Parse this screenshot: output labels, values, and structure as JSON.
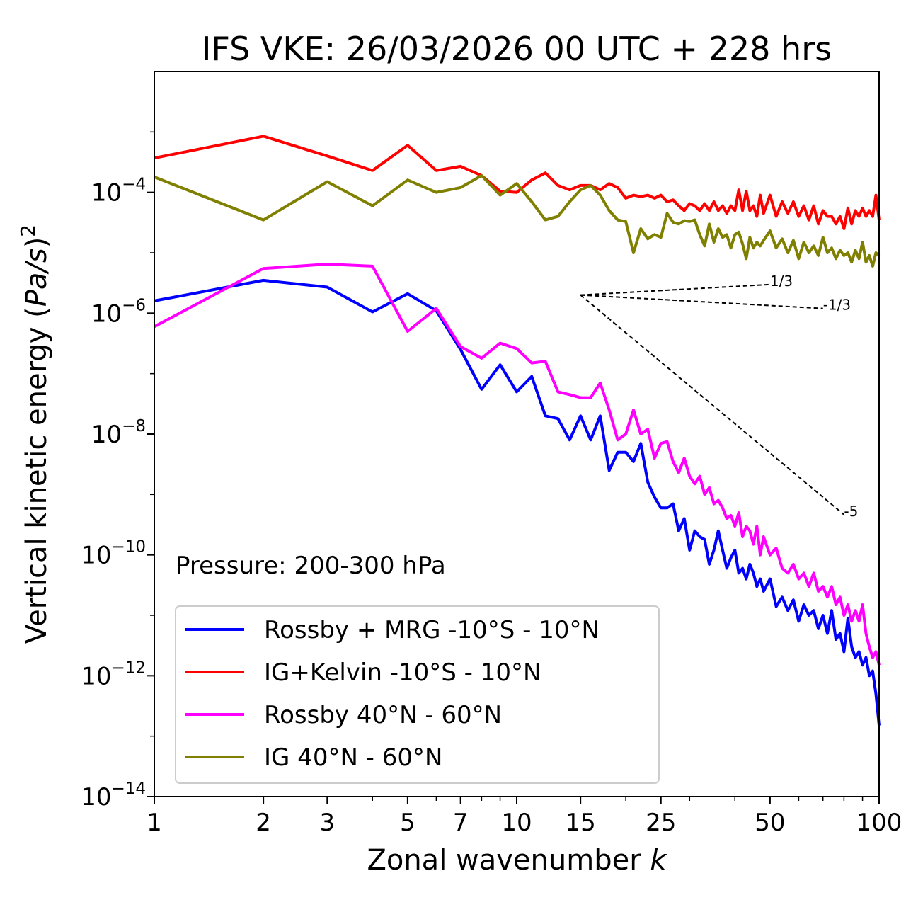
{
  "chart_data": {
    "type": "line",
    "title": "IFS VKE: 26/03/2026 00 UTC + 228 hrs",
    "xlabel": "Zonal wavenumber",
    "xlabel_var": "k",
    "ylabel_text": "Vertical kinetic energy (",
    "ylabel_unit": "Pa/s",
    "ylabel_close": ")",
    "ylabel_exp": "2",
    "x_scale": "log",
    "y_scale": "log",
    "xlim": [
      1,
      100
    ],
    "ylim": [
      1e-14,
      0.01
    ],
    "x_ticks": [
      1,
      2,
      3,
      5,
      7,
      10,
      15,
      25,
      50,
      100
    ],
    "x_tick_labels": [
      "1",
      "2",
      "3",
      "5",
      "7",
      "10",
      "15",
      "25",
      "50",
      "100"
    ],
    "y_ticks": [
      {
        "value": 0.0001,
        "base": "10",
        "exp": "−4"
      },
      {
        "value": 1e-06,
        "base": "10",
        "exp": "−6"
      },
      {
        "value": 1e-08,
        "base": "10",
        "exp": "−8"
      },
      {
        "value": 1e-10,
        "base": "10",
        "exp": "−10"
      },
      {
        "value": 1e-12,
        "base": "10",
        "exp": "−12"
      },
      {
        "value": 1e-14,
        "base": "10",
        "exp": "−14"
      }
    ],
    "annotation": "Pressure: 200-300 hPa",
    "legend_position": "lower-left",
    "reference_lines": [
      {
        "label": "1/3",
        "slope": 0.3333,
        "x0": 15,
        "y0": 2e-06,
        "x1": 50
      },
      {
        "label": "-1/3",
        "slope": -0.3333,
        "x0": 15,
        "y0": 2e-06,
        "x1": 70
      },
      {
        "label": "-5",
        "slope": -5,
        "x0": 15,
        "y0": 2e-06,
        "x1": 80
      }
    ],
    "series": [
      {
        "name": "Rossby + MRG -10°S - 10°N",
        "color": "#0000ff",
        "points": [
          [
            1,
            1.6e-06
          ],
          [
            2,
            3.5e-06
          ],
          [
            3,
            2.7e-06
          ],
          [
            4,
            1.05e-06
          ],
          [
            5,
            2.1e-06
          ],
          [
            6,
            1.1e-06
          ],
          [
            7,
            2.5e-07
          ],
          [
            8,
            5.5e-08
          ],
          [
            9,
            1.4e-07
          ],
          [
            10,
            5e-08
          ],
          [
            11,
            9e-08
          ],
          [
            12,
            2e-08
          ],
          [
            13,
            1.8e-08
          ],
          [
            14,
            8e-09
          ],
          [
            15,
            2e-08
          ],
          [
            16,
            8e-09
          ],
          [
            17,
            2e-08
          ],
          [
            18,
            2.5e-09
          ],
          [
            19,
            5e-09
          ],
          [
            20,
            5e-09
          ],
          [
            21,
            3.5e-09
          ],
          [
            22,
            7e-09
          ],
          [
            23,
            1.6e-09
          ],
          [
            24,
            9e-10
          ],
          [
            25,
            6e-10
          ],
          [
            26,
            6e-10
          ],
          [
            27,
            7e-10
          ],
          [
            28,
            2.5e-10
          ],
          [
            29,
            4e-10
          ],
          [
            30,
            1.2e-10
          ],
          [
            31,
            2.5e-10
          ],
          [
            32,
            2e-10
          ],
          [
            33,
            1.8e-10
          ],
          [
            34,
            7e-11
          ],
          [
            35,
            1.2e-10
          ],
          [
            36,
            2.5e-10
          ],
          [
            37,
            1.2e-10
          ],
          [
            38,
            6e-11
          ],
          [
            39,
            9e-11
          ],
          [
            40,
            1.2e-10
          ],
          [
            41,
            5e-11
          ],
          [
            42,
            6e-11
          ],
          [
            43,
            4e-11
          ],
          [
            44,
            7e-11
          ],
          [
            45,
            5e-11
          ],
          [
            46,
            3e-11
          ],
          [
            47,
            4e-11
          ],
          [
            48,
            2.5e-11
          ],
          [
            50,
            4e-11
          ],
          [
            52,
            1.4e-11
          ],
          [
            54,
            2e-11
          ],
          [
            56,
            1.2e-11
          ],
          [
            58,
            1.8e-11
          ],
          [
            60,
            8e-12
          ],
          [
            62,
            1.5e-11
          ],
          [
            64,
            1e-11
          ],
          [
            66,
            1.2e-11
          ],
          [
            68,
            6e-12
          ],
          [
            70,
            1e-11
          ],
          [
            72,
            5e-12
          ],
          [
            74,
            1.2e-11
          ],
          [
            76,
            4e-12
          ],
          [
            78,
            5e-12
          ],
          [
            80,
            2.5e-12
          ],
          [
            82,
            9e-12
          ],
          [
            84,
            3e-12
          ],
          [
            86,
            2e-12
          ],
          [
            88,
            2.5e-12
          ],
          [
            90,
            1.5e-12
          ],
          [
            92,
            2e-12
          ],
          [
            94,
            1e-12
          ],
          [
            96,
            1.2e-12
          ],
          [
            98,
            5e-13
          ],
          [
            100,
            1.5e-13
          ]
        ]
      },
      {
        "name": "IG+Kelvin -10°S - 10°N",
        "color": "#ff0000",
        "points": [
          [
            1,
            0.00037
          ],
          [
            2,
            0.00085
          ],
          [
            3,
            0.0004
          ],
          [
            4,
            0.00023
          ],
          [
            5,
            0.0006
          ],
          [
            6,
            0.00023
          ],
          [
            7,
            0.00027
          ],
          [
            8,
            0.00019
          ],
          [
            9,
            0.000105
          ],
          [
            10,
            0.0001
          ],
          [
            11,
            0.00016
          ],
          [
            12,
            0.00021
          ],
          [
            13,
            0.00013
          ],
          [
            14,
            0.00011
          ],
          [
            15,
            0.00013
          ],
          [
            16,
            0.00013
          ],
          [
            17,
            0.00011
          ],
          [
            18,
            0.00014
          ],
          [
            19,
            0.00012
          ],
          [
            20,
            8e-05
          ],
          [
            21,
            9e-05
          ],
          [
            22,
            8.5e-05
          ],
          [
            23,
            9e-05
          ],
          [
            24,
            8e-05
          ],
          [
            25,
            9e-05
          ],
          [
            26,
            7e-05
          ],
          [
            27,
            7.5e-05
          ],
          [
            28,
            6e-05
          ],
          [
            29,
            5e-05
          ],
          [
            30,
            6.5e-05
          ],
          [
            31,
            6e-05
          ],
          [
            32,
            5e-05
          ],
          [
            33,
            6.5e-05
          ],
          [
            34,
            5e-05
          ],
          [
            35,
            7e-05
          ],
          [
            36,
            5e-05
          ],
          [
            37,
            6e-05
          ],
          [
            38,
            4.5e-05
          ],
          [
            39,
            6e-05
          ],
          [
            40,
            5e-05
          ],
          [
            41,
            0.00011
          ],
          [
            42,
            5e-05
          ],
          [
            43,
            0.000105
          ],
          [
            44,
            5e-05
          ],
          [
            45,
            6e-05
          ],
          [
            46,
            4e-05
          ],
          [
            47,
            9e-05
          ],
          [
            48,
            4.5e-05
          ],
          [
            50,
            9e-05
          ],
          [
            52,
            4e-05
          ],
          [
            54,
            7e-05
          ],
          [
            56,
            4.5e-05
          ],
          [
            58,
            7e-05
          ],
          [
            60,
            4e-05
          ],
          [
            62,
            6e-05
          ],
          [
            64,
            3.5e-05
          ],
          [
            66,
            6e-05
          ],
          [
            68,
            3e-05
          ],
          [
            70,
            5e-05
          ],
          [
            72,
            4e-05
          ],
          [
            74,
            4e-05
          ],
          [
            76,
            3e-05
          ],
          [
            78,
            4e-05
          ],
          [
            80,
            2.5e-05
          ],
          [
            82,
            5.5e-05
          ],
          [
            84,
            3e-05
          ],
          [
            86,
            5e-05
          ],
          [
            88,
            4e-05
          ],
          [
            90,
            5.5e-05
          ],
          [
            92,
            4e-05
          ],
          [
            94,
            5e-05
          ],
          [
            96,
            4e-05
          ],
          [
            98,
            9e-05
          ],
          [
            100,
            3.5e-05
          ]
        ]
      },
      {
        "name": "Rossby 40°N - 60°N",
        "color": "#ff00ff",
        "points": [
          [
            1,
            6e-07
          ],
          [
            2,
            5.5e-06
          ],
          [
            3,
            6.5e-06
          ],
          [
            4,
            6e-06
          ],
          [
            5,
            5e-07
          ],
          [
            6,
            1.2e-06
          ],
          [
            7,
            2.8e-07
          ],
          [
            8,
            1.8e-07
          ],
          [
            9,
            3.2e-07
          ],
          [
            10,
            2.6e-07
          ],
          [
            11,
            1.5e-07
          ],
          [
            12,
            1.6e-07
          ],
          [
            13,
            5e-08
          ],
          [
            14,
            4.5e-08
          ],
          [
            15,
            4e-08
          ],
          [
            16,
            4e-08
          ],
          [
            17,
            7e-08
          ],
          [
            18,
            2.5e-08
          ],
          [
            19,
            8e-09
          ],
          [
            20,
            1e-08
          ],
          [
            21,
            2.5e-08
          ],
          [
            22,
            1e-08
          ],
          [
            23,
            1.2e-08
          ],
          [
            24,
            4e-09
          ],
          [
            25,
            7e-09
          ],
          [
            26,
            7.5e-09
          ],
          [
            27,
            3.5e-09
          ],
          [
            28,
            2.3e-09
          ],
          [
            29,
            4e-09
          ],
          [
            30,
            2e-09
          ],
          [
            31,
            1.5e-09
          ],
          [
            32,
            2e-09
          ],
          [
            33,
            1e-09
          ],
          [
            34,
            1.3e-09
          ],
          [
            35,
            7e-10
          ],
          [
            36,
            8e-10
          ],
          [
            37,
            6e-10
          ],
          [
            38,
            4e-10
          ],
          [
            39,
            4.5e-10
          ],
          [
            40,
            3e-10
          ],
          [
            41,
            5e-10
          ],
          [
            42,
            2e-10
          ],
          [
            43,
            3e-10
          ],
          [
            44,
            2.5e-10
          ],
          [
            45,
            1.5e-10
          ],
          [
            46,
            3e-10
          ],
          [
            47,
            1e-10
          ],
          [
            48,
            2e-10
          ],
          [
            50,
            1e-10
          ],
          [
            52,
            1.3e-10
          ],
          [
            54,
            6e-11
          ],
          [
            56,
            5e-11
          ],
          [
            58,
            7e-11
          ],
          [
            60,
            4e-11
          ],
          [
            62,
            5e-11
          ],
          [
            64,
            3e-11
          ],
          [
            66,
            5e-11
          ],
          [
            68,
            2.5e-11
          ],
          [
            70,
            3e-11
          ],
          [
            72,
            2e-11
          ],
          [
            74,
            3e-11
          ],
          [
            76,
            1.5e-11
          ],
          [
            78,
            2e-11
          ],
          [
            80,
            1e-11
          ],
          [
            82,
            1.5e-11
          ],
          [
            84,
            8e-12
          ],
          [
            86,
            1.2e-11
          ],
          [
            88,
            8e-12
          ],
          [
            90,
            1.5e-11
          ],
          [
            92,
            5e-12
          ],
          [
            94,
            3e-12
          ],
          [
            96,
            2e-12
          ],
          [
            98,
            2.5e-12
          ],
          [
            100,
            1.5e-12
          ]
        ]
      },
      {
        "name": "IG 40°N - 60°N",
        "color": "#808000",
        "points": [
          [
            1,
            0.00018
          ],
          [
            2,
            3.5e-05
          ],
          [
            3,
            0.00015
          ],
          [
            4,
            6e-05
          ],
          [
            5,
            0.00016
          ],
          [
            6,
            0.0001
          ],
          [
            7,
            0.00012
          ],
          [
            8,
            0.00019
          ],
          [
            9,
            9e-05
          ],
          [
            10,
            0.00014
          ],
          [
            11,
            7e-05
          ],
          [
            12,
            3.5e-05
          ],
          [
            13,
            4e-05
          ],
          [
            14,
            7e-05
          ],
          [
            15,
            0.00011
          ],
          [
            16,
            0.00013
          ],
          [
            17,
            9e-05
          ],
          [
            18,
            5e-05
          ],
          [
            19,
            3.5e-05
          ],
          [
            20,
            3.3e-05
          ],
          [
            21,
            1e-05
          ],
          [
            22,
            2.5e-05
          ],
          [
            23,
            1.7e-05
          ],
          [
            24,
            2e-05
          ],
          [
            25,
            1.8e-05
          ],
          [
            26,
            4.5e-05
          ],
          [
            27,
            3.2e-05
          ],
          [
            28,
            3e-05
          ],
          [
            29,
            3.4e-05
          ],
          [
            30,
            3.3e-05
          ],
          [
            31,
            3.5e-05
          ],
          [
            32,
            2e-05
          ],
          [
            33,
            1.3e-05
          ],
          [
            34,
            3e-05
          ],
          [
            35,
            1.5e-05
          ],
          [
            36,
            2.5e-05
          ],
          [
            37,
            1.8e-05
          ],
          [
            38,
            2e-05
          ],
          [
            39,
            1.2e-05
          ],
          [
            40,
            2e-05
          ],
          [
            41,
            2.2e-05
          ],
          [
            42,
            1.4e-05
          ],
          [
            43,
            8e-06
          ],
          [
            44,
            1.8e-05
          ],
          [
            45,
            1.2e-05
          ],
          [
            46,
            1.5e-05
          ],
          [
            47,
            1.3e-05
          ],
          [
            48,
            1.6e-05
          ],
          [
            50,
            2.3e-05
          ],
          [
            52,
            1.2e-05
          ],
          [
            54,
            1.7e-05
          ],
          [
            56,
            1e-05
          ],
          [
            58,
            1.6e-05
          ],
          [
            60,
            8e-06
          ],
          [
            62,
            1.5e-05
          ],
          [
            64,
            1e-05
          ],
          [
            66,
            1.3e-05
          ],
          [
            68,
            9e-06
          ],
          [
            70,
            1.8e-05
          ],
          [
            72,
            1e-05
          ],
          [
            74,
            1.2e-05
          ],
          [
            76,
            8e-06
          ],
          [
            78,
            1.1e-05
          ],
          [
            80,
            9e-06
          ],
          [
            82,
            1e-05
          ],
          [
            84,
            7e-06
          ],
          [
            86,
            1.1e-05
          ],
          [
            88,
            8e-06
          ],
          [
            90,
            1.5e-05
          ],
          [
            92,
            7e-06
          ],
          [
            94,
            9e-06
          ],
          [
            96,
            6e-06
          ],
          [
            98,
            1e-05
          ],
          [
            100,
            9e-06
          ]
        ]
      }
    ]
  }
}
